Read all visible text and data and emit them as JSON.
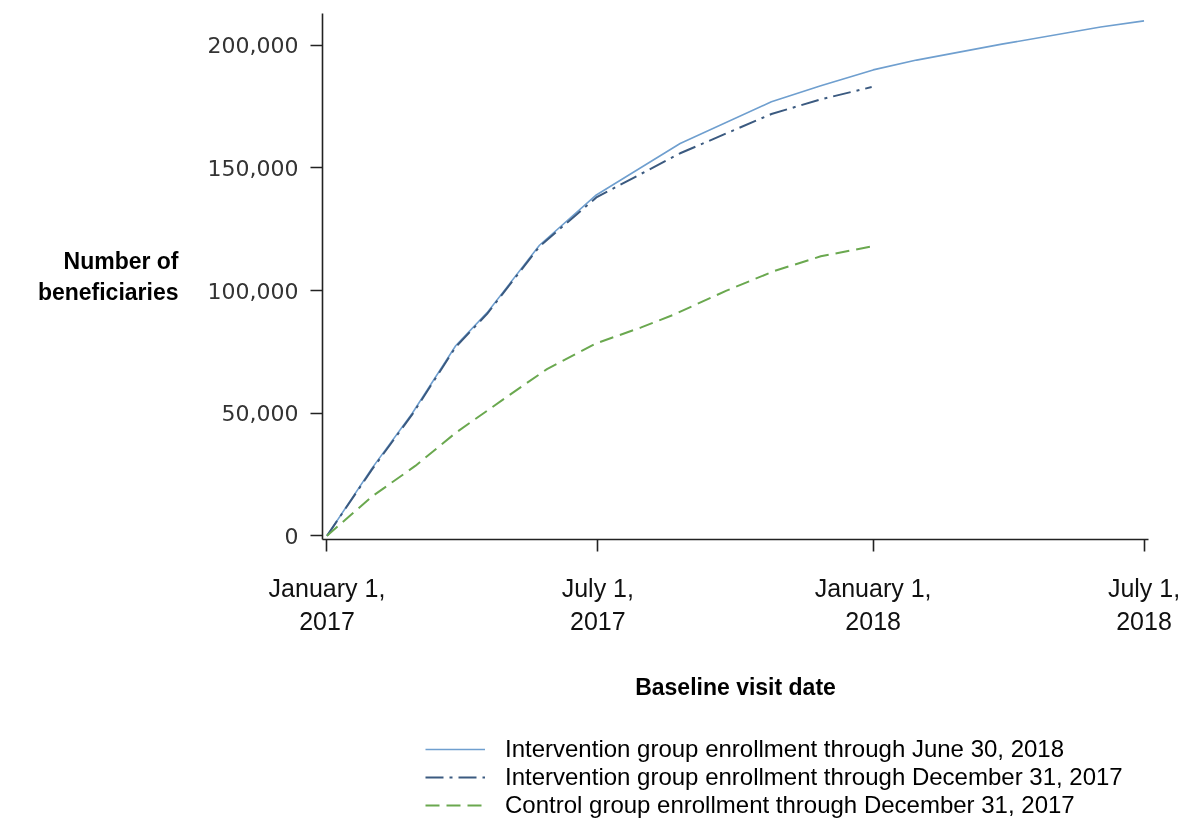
{
  "chart_data": {
    "type": "line",
    "xlabel": "Baseline visit date",
    "ylabel": "Number of beneficiaries",
    "xlim": [
      "2016-12-29",
      "2018-07-04"
    ],
    "ylim": [
      -1500,
      213000
    ],
    "xticks": [
      {
        "value": "2017-01-01",
        "label": "January 1, 2017"
      },
      {
        "value": "2017-07-01",
        "label": "July 1, 2017"
      },
      {
        "value": "2018-01-01",
        "label": "January 1, 2018"
      },
      {
        "value": "2018-07-01",
        "label": "July 1, 2018"
      }
    ],
    "yticks": [
      0,
      {
        "value": 50000,
        "label": "50,000"
      },
      {
        "value": 100000,
        "label": "100,000"
      },
      {
        "value": 150000,
        "label": "150,000"
      },
      {
        "value": 200000,
        "label": "200,000"
      }
    ],
    "legend": "bottom",
    "series": [
      {
        "name": "Intervention group enrollment through June 30, 2018",
        "color": "#6f9fcf",
        "line_style": "solid",
        "x": [
          "2017-01-01",
          "2017-01-31",
          "2017-02-27",
          "2017-03-28",
          "2017-04-18",
          "2017-05-23",
          "2017-06-30",
          "2017-08-25",
          "2017-10-25",
          "2017-11-27",
          "2018-01-01",
          "2018-01-30",
          "2018-03-28",
          "2018-06-02",
          "2018-07-01"
        ],
        "values": [
          0,
          27500,
          50000,
          77500,
          91000,
          118500,
          139000,
          160000,
          177000,
          183500,
          190000,
          194000,
          200500,
          207500,
          210000
        ]
      },
      {
        "name": "Intervention group enrollment through December 31, 2017",
        "color": "#3b5a80",
        "line_style": "dashdot",
        "x": [
          "2017-01-01",
          "2017-01-31",
          "2017-02-27",
          "2017-03-28",
          "2017-04-18",
          "2017-05-23",
          "2017-06-30",
          "2017-08-25",
          "2017-10-25",
          "2017-11-27",
          "2017-12-31"
        ],
        "values": [
          0,
          27000,
          49500,
          77000,
          90500,
          118000,
          138000,
          156000,
          172000,
          178000,
          183000
        ]
      },
      {
        "name": "Control group enrollment through December 31, 2017",
        "color": "#6aa84f",
        "line_style": "dashed",
        "x": [
          "2017-01-01",
          "2017-01-31",
          "2017-03-01",
          "2017-03-28",
          "2017-05-02",
          "2017-05-28",
          "2017-06-30",
          "2017-07-30",
          "2017-08-20",
          "2017-09-25",
          "2017-10-27",
          "2017-11-27",
          "2017-12-31"
        ],
        "values": [
          0,
          16000,
          28500,
          42000,
          57000,
          68000,
          78500,
          85000,
          90000,
          100000,
          108000,
          114000,
          118000
        ]
      }
    ]
  }
}
